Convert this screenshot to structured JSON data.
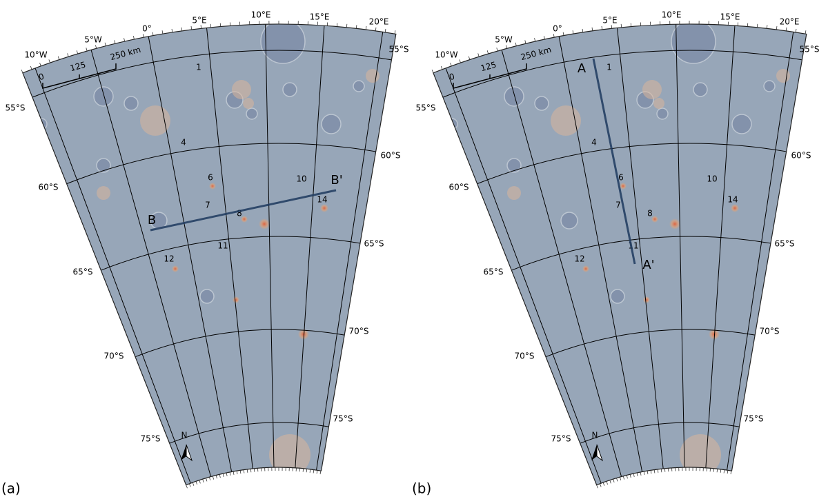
{
  "panels": [
    {
      "panel_label": "(a)",
      "longitude_labels": [
        "10°W",
        "5°W",
        "0°",
        "5°E",
        "10°E",
        "15°E",
        "20°E"
      ],
      "latitude_labels_left": [
        "55°S",
        "60°S",
        "65°S",
        "70°S",
        "75°S"
      ],
      "latitude_labels_right": [
        "55°S",
        "60°S",
        "65°S",
        "70°S",
        "75°S"
      ],
      "scale_bar_labels": [
        "0",
        "125",
        "250 km"
      ],
      "feature_labels": [
        "1",
        "4",
        "6",
        "7",
        "8",
        "10",
        "11",
        "12",
        "14"
      ],
      "profile_labels": [
        "B",
        "B'"
      ],
      "north_label": "N"
    },
    {
      "panel_label": "(b)",
      "longitude_labels": [
        "10°W",
        "5°W",
        "0°",
        "5°E",
        "10°E",
        "15°E",
        "20°E"
      ],
      "latitude_labels_left": [
        "55°S",
        "60°S",
        "65°S",
        "70°S",
        "75°S"
      ],
      "latitude_labels_right": [
        "55°S",
        "60°S",
        "65°S",
        "70°S",
        "75°S"
      ],
      "scale_bar_labels": [
        "0",
        "125",
        "250 km"
      ],
      "feature_labels": [
        "1",
        "4",
        "6",
        "7",
        "8",
        "10",
        "11",
        "12",
        "14"
      ],
      "profile_labels": [
        "A",
        "A'"
      ],
      "north_label": "N"
    }
  ]
}
